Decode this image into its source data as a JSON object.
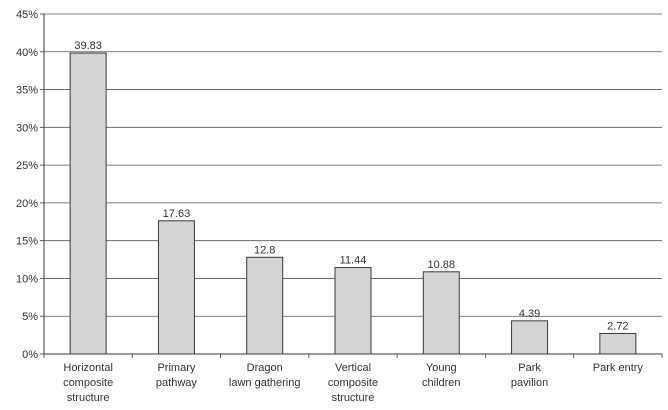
{
  "chart_data": {
    "type": "bar",
    "title": "",
    "xlabel": "",
    "ylabel": "",
    "categories": [
      [
        "Horizontal",
        "composite",
        "structure"
      ],
      [
        "Primary",
        "pathway"
      ],
      [
        "Dragon",
        "lawn gathering"
      ],
      [
        "Vertical",
        "composite",
        "structure"
      ],
      [
        "Young",
        "children"
      ],
      [
        "Park",
        "pavilion"
      ],
      [
        "Park entry"
      ]
    ],
    "values": [
      39.83,
      17.63,
      12.8,
      11.44,
      10.88,
      4.39,
      2.72
    ],
    "value_labels": [
      "39.83",
      "17.63",
      "12.8",
      "11.44",
      "10.88",
      "4.39",
      "2.72"
    ],
    "ylim": [
      0,
      45
    ],
    "yticks": [
      0,
      5,
      10,
      15,
      20,
      25,
      30,
      35,
      40,
      45
    ],
    "ytick_labels": [
      "0%",
      "5%",
      "10%",
      "15%",
      "20%",
      "25%",
      "30%",
      "35%",
      "40%",
      "45%"
    ],
    "grid": true,
    "legend": "none",
    "colors": {
      "bar_fill": "#d4d4d4",
      "bar_stroke": "#3a3a3a",
      "grid": "#555555",
      "axis": "#3a3a3a",
      "text": "#333333"
    }
  }
}
